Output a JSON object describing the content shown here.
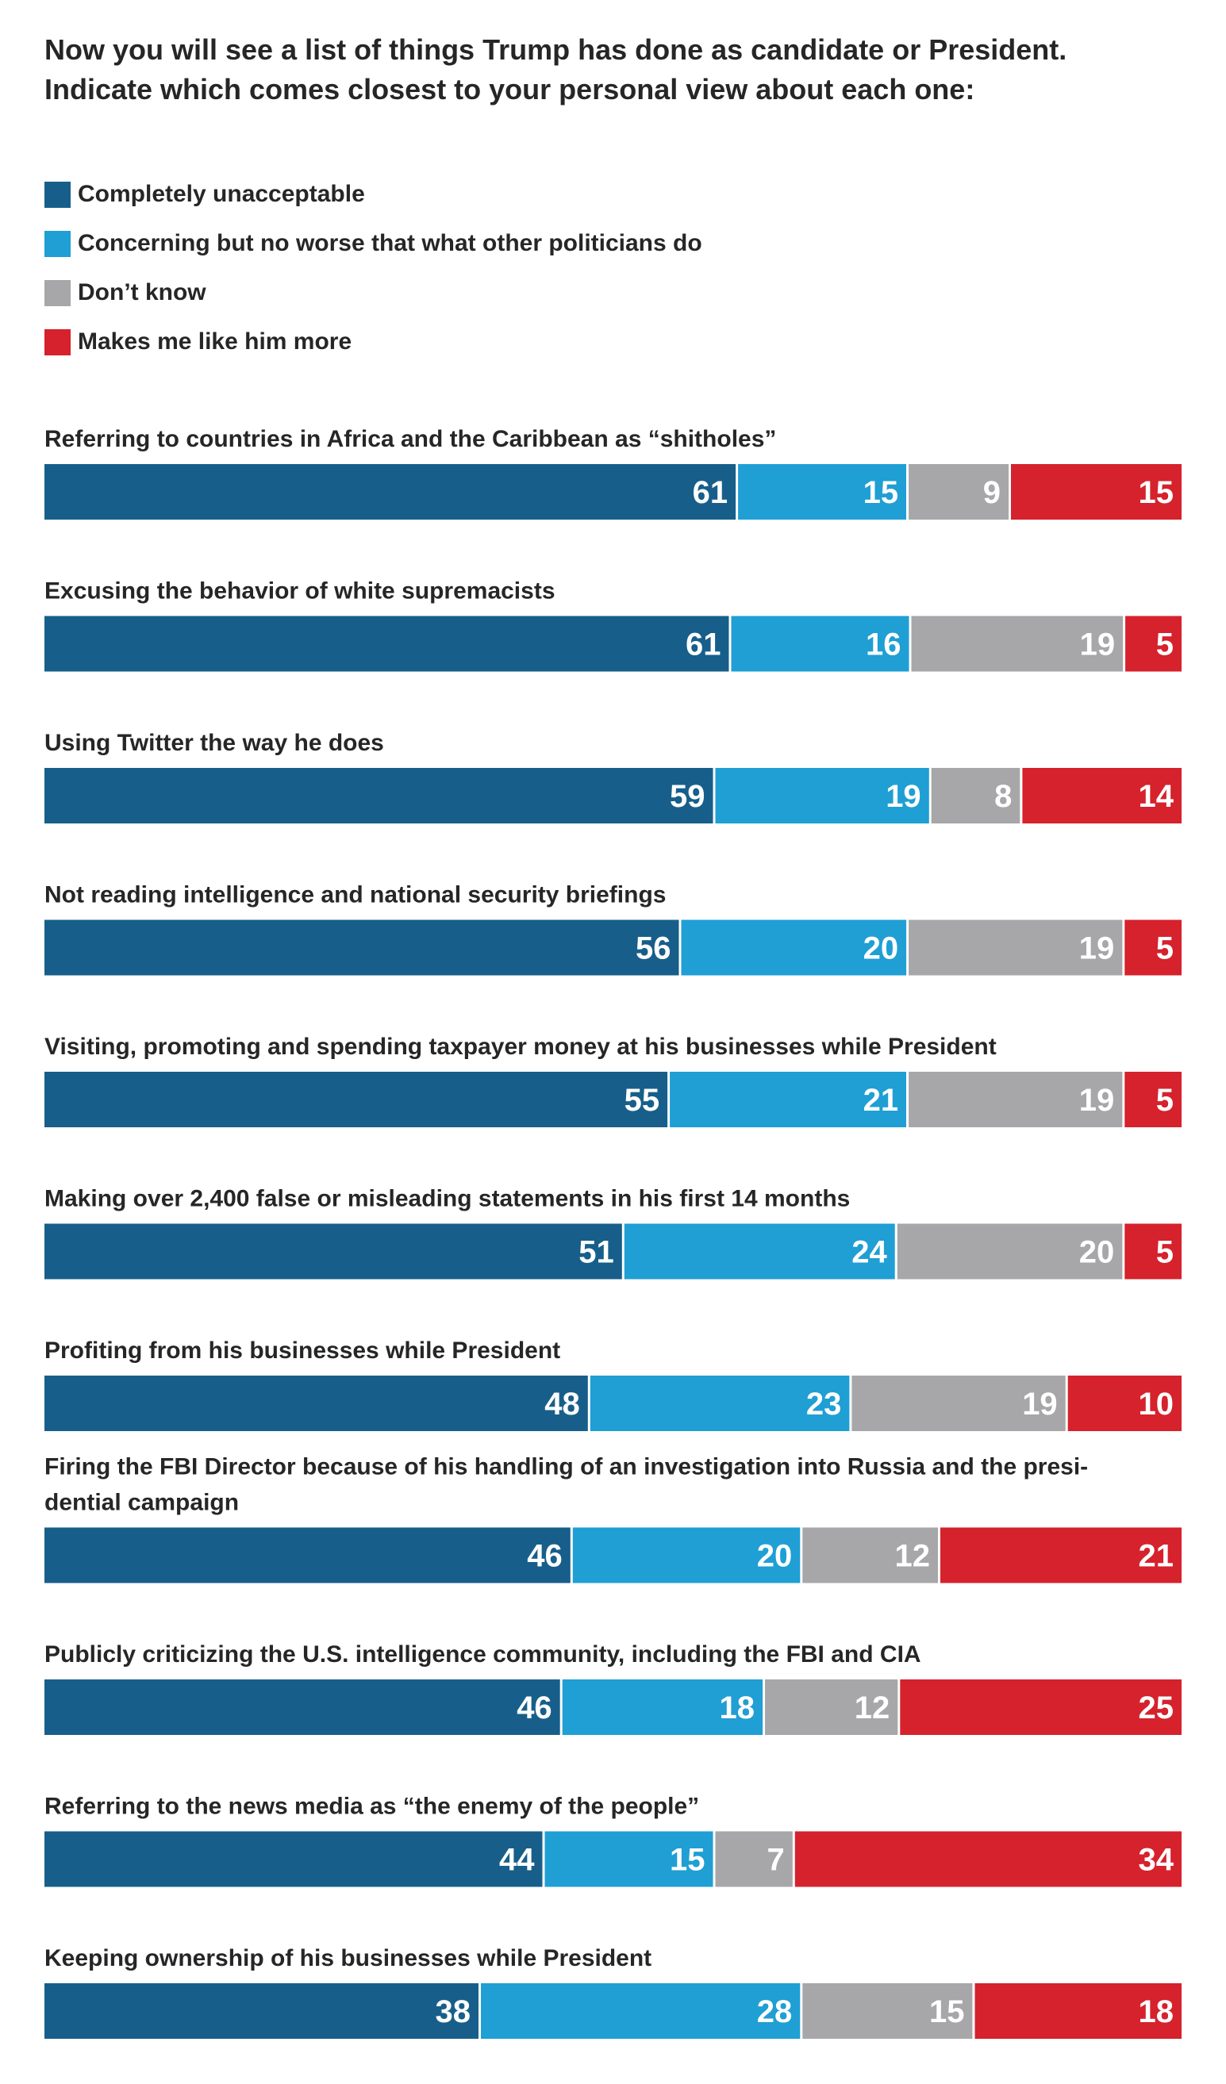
{
  "title_line1": "Now you will see a list of things Trump has done as candidate or President.",
  "title_line2": "Indicate which comes closest to your personal view about each one:",
  "legend": [
    {
      "label": "Completely unacceptable",
      "color": "#175f8a"
    },
    {
      "label": "Concerning but no worse that what other politicians do",
      "color": "#1f9fd4"
    },
    {
      "label": "Don’t know",
      "color": "#a7a7a9"
    },
    {
      "label": "Makes me like him more",
      "color": "#d5222c"
    }
  ],
  "chart_data": {
    "type": "bar",
    "orientation": "horizontal-stacked-100",
    "series_names": [
      "Completely unacceptable",
      "Concerning but no worse that what other politicians do",
      "Don’t know",
      "Makes me like him more"
    ],
    "colors": [
      "#175f8a",
      "#1f9fd4",
      "#a7a7a9",
      "#d5222c"
    ],
    "categories": [
      {
        "label_lines": [
          "Referring to countries in Africa and the Caribbean as “shitholes”"
        ],
        "values": [
          61,
          15,
          9,
          15
        ]
      },
      {
        "label_lines": [
          "Excusing the behavior of white supremacists"
        ],
        "values": [
          61,
          16,
          19,
          5
        ]
      },
      {
        "label_lines": [
          "Using Twitter the way he does"
        ],
        "values": [
          59,
          19,
          8,
          14
        ]
      },
      {
        "label_lines": [
          "Not reading intelligence and national security briefings"
        ],
        "values": [
          56,
          20,
          19,
          5
        ]
      },
      {
        "label_lines": [
          "Visiting, promoting and spending taxpayer money at his businesses while President"
        ],
        "values": [
          55,
          21,
          19,
          5
        ]
      },
      {
        "label_lines": [
          "Making over 2,400 false or misleading statements in his first 14 months"
        ],
        "values": [
          51,
          24,
          20,
          5
        ]
      },
      {
        "label_lines": [
          "Profiting from his businesses while President"
        ],
        "values": [
          48,
          23,
          19,
          10
        ]
      },
      {
        "label_lines": [
          "Firing the FBI Director because of his handling of an investigation into Russia and the presi-",
          "dential campaign"
        ],
        "values": [
          46,
          20,
          12,
          21
        ]
      },
      {
        "label_lines": [
          "Publicly criticizing the U.S. intelligence community, including the FBI and CIA"
        ],
        "values": [
          46,
          18,
          12,
          25
        ]
      },
      {
        "label_lines": [
          "Referring to the news media as “the enemy of the people”"
        ],
        "values": [
          44,
          15,
          7,
          34
        ]
      },
      {
        "label_lines": [
          "Keeping ownership of his businesses while President"
        ],
        "values": [
          38,
          28,
          15,
          18
        ]
      }
    ]
  }
}
